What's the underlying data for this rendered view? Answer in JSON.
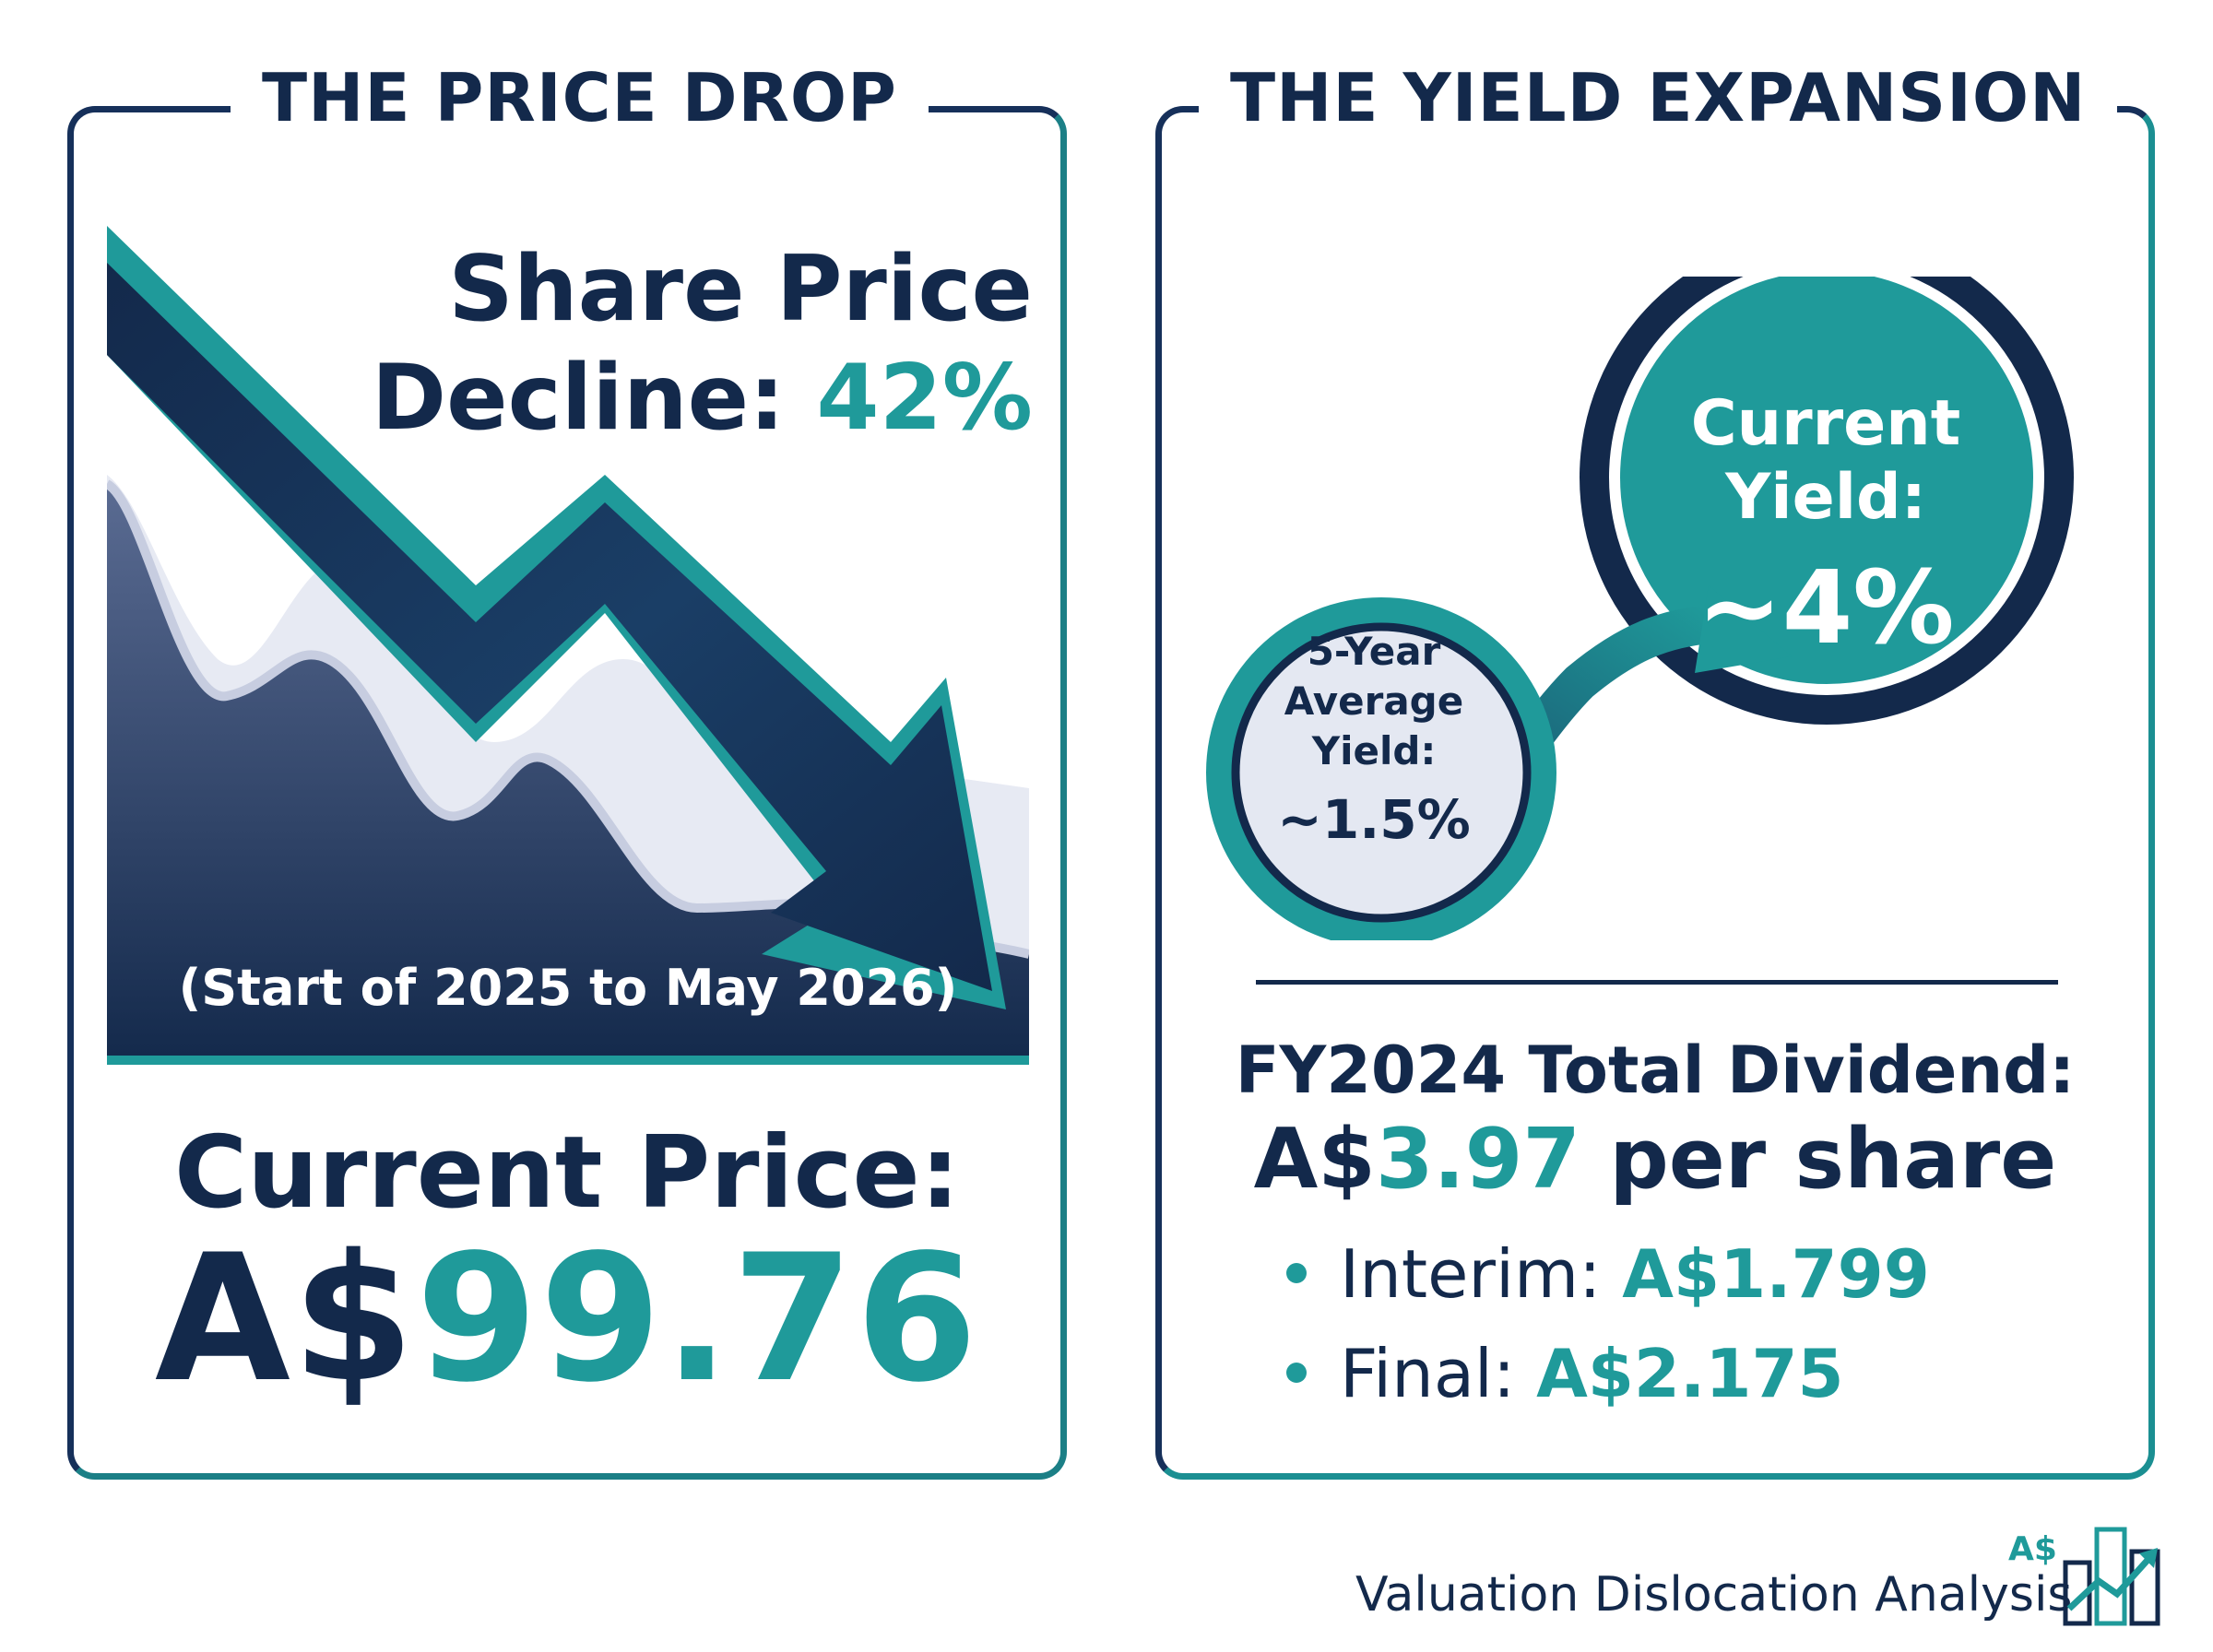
{
  "left_panel": {
    "title": "THE PRICE DROP",
    "decline_line1": "Share Price",
    "decline_line2_prefix": "Decline: ",
    "decline_value": "42%",
    "period": "(Start of 2025 to May 2026)",
    "current_price_label": "Current Price:",
    "current_price_currency": "A$",
    "current_price_value": "99.76"
  },
  "right_panel": {
    "title": "THE YIELD EXPANSION",
    "current_yield_label_1": "Current",
    "current_yield_label_2": "Yield:",
    "current_yield_value": "~4%",
    "avg_yield_label_1": "5-Year",
    "avg_yield_label_2": "Average",
    "avg_yield_label_3": "Yield:",
    "avg_yield_value": "~1.5%",
    "dividend_label": "FY2024 Total Dividend:",
    "dividend_currency": "A$",
    "dividend_value": "3.97",
    "dividend_suffix": " per share",
    "interim_label": "Interim: ",
    "interim_value": "A$1.799",
    "final_label": "Final: ",
    "final_value": "A$2.175"
  },
  "footer": {
    "currency_mark": "A$",
    "label": "Valuation Dislocation Analysis"
  },
  "colors": {
    "navy": "#13294b",
    "teal": "#1f9a9a"
  }
}
